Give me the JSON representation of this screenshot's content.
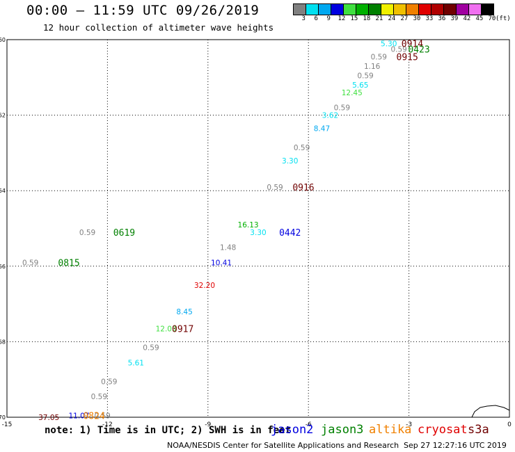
{
  "header": {
    "title": "00:00 — 11:59 UTC 09/26/2019",
    "subtitle": "12 hour collection of altimeter wave heights"
  },
  "legend": {
    "unit": "(ft)",
    "swatches": [
      {
        "label": "3",
        "color": "#808080"
      },
      {
        "label": "6",
        "color": "#00e0f0"
      },
      {
        "label": "9",
        "color": "#00a8f0"
      },
      {
        "label": "12",
        "color": "#0000e0"
      },
      {
        "label": "15",
        "color": "#40e040"
      },
      {
        "label": "18",
        "color": "#00b000"
      },
      {
        "label": "21",
        "color": "#008000"
      },
      {
        "label": "24",
        "color": "#f0f000"
      },
      {
        "label": "27",
        "color": "#f0c000"
      },
      {
        "label": "30",
        "color": "#f08000"
      },
      {
        "label": "33",
        "color": "#e00000"
      },
      {
        "label": "36",
        "color": "#b00000"
      },
      {
        "label": "39",
        "color": "#700000"
      },
      {
        "label": "42",
        "color": "#a000a0"
      },
      {
        "label": "45",
        "color": "#f070f0"
      },
      {
        "label": "70",
        "color": "#000000"
      }
    ]
  },
  "chart_data": {
    "type": "scatter",
    "xlim": [
      -15,
      0
    ],
    "ylim": [
      -70,
      -60
    ],
    "xticks": [
      -15,
      -12,
      -9,
      -6,
      -3,
      0
    ],
    "yticks": [
      -60,
      -62,
      -64,
      -66,
      -68,
      -70
    ],
    "xtick_labels": [
      "-15",
      "-12",
      "-9",
      "-6",
      "-3",
      "0"
    ],
    "ytick_labels": [
      "-60",
      "-62",
      "-64",
      "-66",
      "-68",
      "-70"
    ],
    "grid": true,
    "points": [
      {
        "x": -3.6,
        "y": -60.1,
        "value": "5.30",
        "color": "#00e0f0"
      },
      {
        "x": -3.3,
        "y": -60.25,
        "value": "0.59",
        "color": "#808080"
      },
      {
        "x": -3.9,
        "y": -60.45,
        "value": "0.59",
        "color": "#808080"
      },
      {
        "x": -4.1,
        "y": -60.7,
        "value": "1.16",
        "color": "#808080"
      },
      {
        "x": -4.3,
        "y": -60.95,
        "value": "0.59",
        "color": "#808080"
      },
      {
        "x": -4.45,
        "y": -61.2,
        "value": "5.65",
        "color": "#00e0f0"
      },
      {
        "x": -4.7,
        "y": -61.4,
        "value": "12.45",
        "color": "#40e040"
      },
      {
        "x": -5.0,
        "y": -61.8,
        "value": "0.59",
        "color": "#808080"
      },
      {
        "x": -5.35,
        "y": -62.0,
        "value": "3.62",
        "color": "#00e0f0"
      },
      {
        "x": -5.6,
        "y": -62.35,
        "value": "8.47",
        "color": "#00a8f0"
      },
      {
        "x": -6.2,
        "y": -62.85,
        "value": "0.59",
        "color": "#808080"
      },
      {
        "x": -6.55,
        "y": -63.2,
        "value": "3.30",
        "color": "#00e0f0"
      },
      {
        "x": -7.0,
        "y": -63.9,
        "value": "0.59",
        "color": "#808080"
      },
      {
        "x": -7.8,
        "y": -64.9,
        "value": "16.13",
        "color": "#00b000"
      },
      {
        "x": -7.5,
        "y": -65.1,
        "value": "3.30",
        "color": "#00e0f0"
      },
      {
        "x": -8.4,
        "y": -65.5,
        "value": "1.48",
        "color": "#808080"
      },
      {
        "x": -8.6,
        "y": -65.9,
        "value": "10.41",
        "color": "#0000e0"
      },
      {
        "x": -9.1,
        "y": -66.5,
        "value": "32.20",
        "color": "#e00000"
      },
      {
        "x": -9.7,
        "y": -67.2,
        "value": "8.45",
        "color": "#00a8f0"
      },
      {
        "x": -10.25,
        "y": -67.65,
        "value": "12.03",
        "color": "#40e040"
      },
      {
        "x": -10.7,
        "y": -68.15,
        "value": "0.59",
        "color": "#808080"
      },
      {
        "x": -11.15,
        "y": -68.55,
        "value": "5.61",
        "color": "#00e0f0"
      },
      {
        "x": -11.95,
        "y": -69.05,
        "value": "0.59",
        "color": "#808080"
      },
      {
        "x": -12.25,
        "y": -69.45,
        "value": "0.59",
        "color": "#808080"
      },
      {
        "x": -12.85,
        "y": -69.95,
        "value": "11.07",
        "color": "#0000e0"
      },
      {
        "x": -12.15,
        "y": -69.95,
        "value": "0.59",
        "color": "#808080"
      },
      {
        "x": -13.75,
        "y": -70.0,
        "value": "37.05",
        "color": "#700000"
      },
      {
        "x": -12.6,
        "y": -65.1,
        "value": "0.59",
        "color": "#808080"
      },
      {
        "x": -14.3,
        "y": -65.9,
        "value": "0.59",
        "color": "#808080"
      }
    ],
    "time_labels": [
      {
        "x": -2.9,
        "y": -60.1,
        "text": "0914",
        "color": "#700000"
      },
      {
        "x": -2.7,
        "y": -60.25,
        "text": "0423",
        "color": "#008000"
      },
      {
        "x": -3.05,
        "y": -60.45,
        "text": "0915",
        "color": "#700000"
      },
      {
        "x": -6.15,
        "y": -63.9,
        "text": "0916",
        "color": "#700000"
      },
      {
        "x": -6.55,
        "y": -65.1,
        "text": "0442",
        "color": "#0000e0"
      },
      {
        "x": -9.75,
        "y": -67.65,
        "text": "0917",
        "color": "#700000"
      },
      {
        "x": -12.4,
        "y": -69.95,
        "text": "0824",
        "color": "#f08000"
      },
      {
        "x": -11.5,
        "y": -65.1,
        "text": "0619",
        "color": "#008000"
      },
      {
        "x": -13.15,
        "y": -65.9,
        "text": "0815",
        "color": "#008000"
      }
    ]
  },
  "footer": {
    "note": "note: 1) Time is in UTC; 2) SWH is in feet",
    "satellites": [
      {
        "name": "jason2",
        "color": "#0000e0"
      },
      {
        "name": "jason3",
        "color": "#008000"
      },
      {
        "name": "altika",
        "color": "#f08000"
      },
      {
        "name": "cryosat",
        "color": "#e00000"
      },
      {
        "name": "s3a",
        "color": "#700000"
      }
    ],
    "credit": "NOAA/NESDIS Center for Satellite Applications and Research",
    "stamp": "Sep 27 12:27:16 UTC 2019"
  }
}
